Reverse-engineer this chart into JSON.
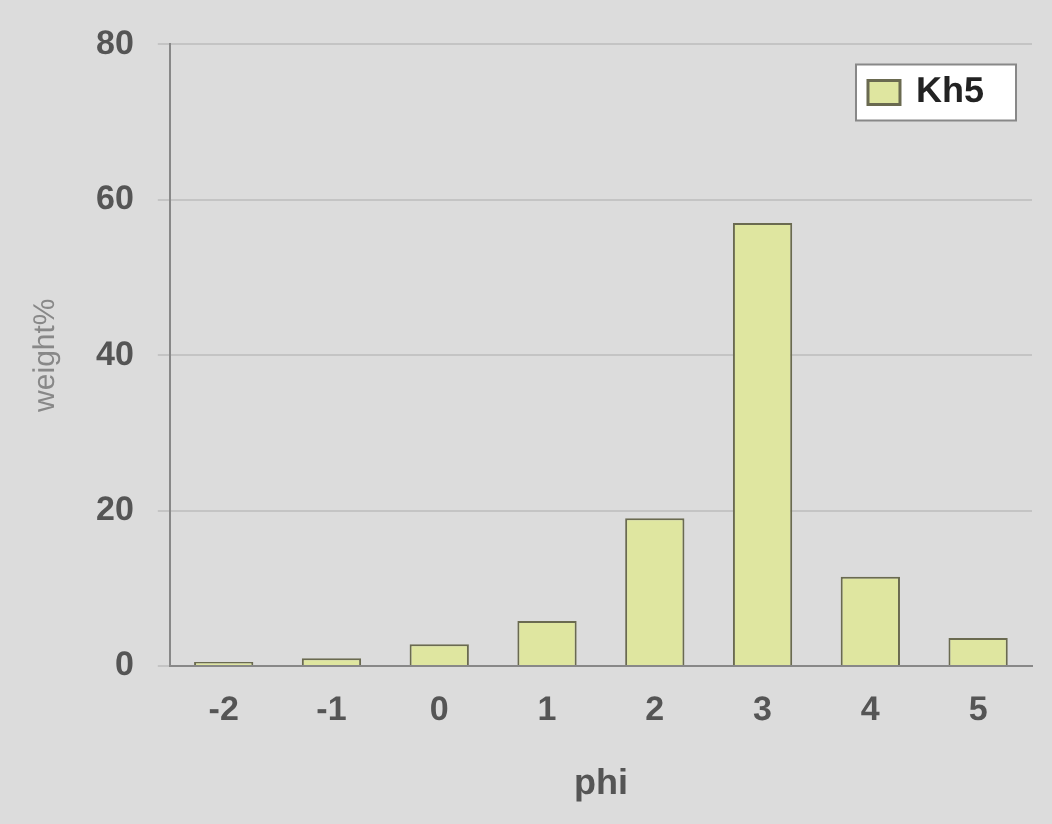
{
  "chart_data": {
    "type": "bar",
    "xlabel": "phi",
    "ylabel": "weight%",
    "categories": [
      "-2",
      "-1",
      "0",
      "1",
      "2",
      "3",
      "4",
      "5"
    ],
    "series": [
      {
        "name": "Kh5",
        "color": "#dfe6a0",
        "values": [
          0.5,
          1,
          2.8,
          5.8,
          19,
          57,
          11.5,
          3.6
        ]
      }
    ],
    "ylim": [
      0,
      80
    ],
    "yticks": [
      0,
      20,
      40,
      60,
      80
    ],
    "grid": "y",
    "legend": "top right"
  }
}
